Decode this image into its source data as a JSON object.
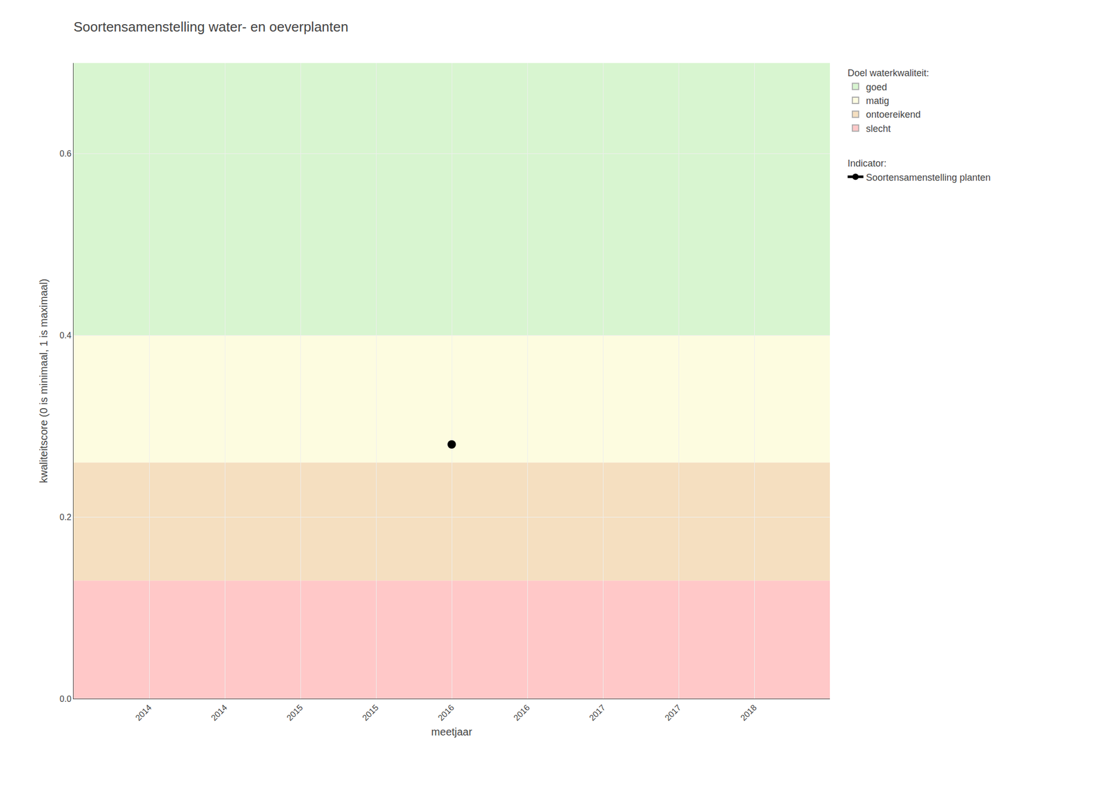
{
  "chart_data": {
    "type": "scatter",
    "title": "Soortensamenstelling water- en oeverplanten",
    "xlabel": "meetjaar",
    "ylabel": "kwaliteitscore (0 is minimaal, 1 is maximaal)",
    "xlim": [
      2013.5,
      2018.5
    ],
    "ylim": [
      0,
      0.7
    ],
    "xticks": [
      2014,
      {
        "value": 2014.5,
        "label": "2014"
      },
      2015,
      {
        "value": 2015.5,
        "label": "2015"
      },
      2016,
      {
        "value": 2016.5,
        "label": "2016"
      },
      2017,
      {
        "value": 2017.5,
        "label": "2017"
      },
      2018
    ],
    "yticks": [
      {
        "value": 0.0,
        "label": "0.0"
      },
      0.2,
      0.4,
      0.6
    ],
    "grid": true,
    "legend": "right",
    "bands_title": "Doel waterkwaliteit:",
    "bands": [
      {
        "name": "goed",
        "ymin": 0.4,
        "ymax": 0.7,
        "color": "#d8f5d0"
      },
      {
        "name": "matig",
        "ymin": 0.26,
        "ymax": 0.4,
        "color": "#fdfce0"
      },
      {
        "name": "ontoereikend",
        "ymin": 0.13,
        "ymax": 0.26,
        "color": "#f5dfc0"
      },
      {
        "name": "slecht",
        "ymin": 0.0,
        "ymax": 0.13,
        "color": "#ffc8c8"
      }
    ],
    "series_title": "Indicator:",
    "series": [
      {
        "name": "Soortensamenstelling planten",
        "color": "#000000",
        "marker": "circle",
        "x": [
          2016.0
        ],
        "values": [
          0.28
        ]
      }
    ]
  }
}
